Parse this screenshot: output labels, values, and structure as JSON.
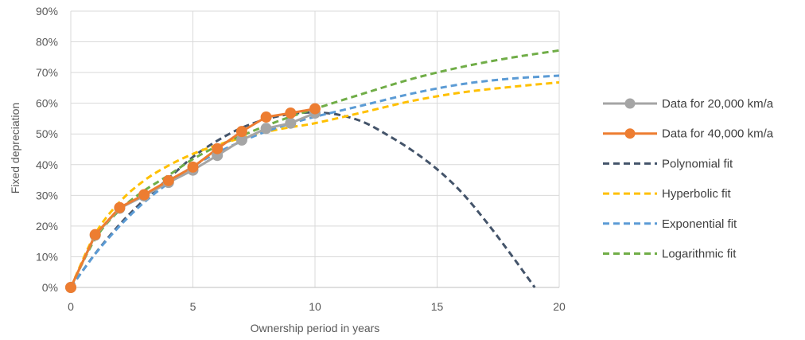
{
  "chart_data": {
    "type": "line",
    "xlabel": "Ownership period in years",
    "ylabel": "Fixed depreciation",
    "xlim": [
      0,
      20
    ],
    "ylim": [
      0,
      0.9
    ],
    "x_ticks": [
      0,
      5,
      10,
      15,
      20
    ],
    "y_ticks": [
      0,
      0.1,
      0.2,
      0.3,
      0.4,
      0.5,
      0.6,
      0.7,
      0.8,
      0.9
    ],
    "x_tick_labels": [
      "0",
      "5",
      "10",
      "15",
      "20"
    ],
    "y_tick_labels": [
      "0%",
      "10%",
      "20%",
      "30%",
      "40%",
      "50%",
      "60%",
      "70%",
      "80%",
      "90%"
    ],
    "grid": true,
    "legend_position": "right",
    "series": [
      {
        "name": "Data for 20,000 km/a",
        "kind": "data",
        "color": "#a5a5a5",
        "dashed": false,
        "markers": true,
        "x": [
          0,
          1,
          2,
          3,
          4,
          5,
          6,
          7,
          8,
          9,
          10
        ],
        "y": [
          0.0,
          0.17,
          0.258,
          0.298,
          0.342,
          0.382,
          0.43,
          0.48,
          0.518,
          0.535,
          0.568
        ]
      },
      {
        "name": "Data for 40,000 km/a",
        "kind": "data",
        "color": "#ed7d31",
        "dashed": false,
        "markers": true,
        "x": [
          0,
          1,
          2,
          3,
          4,
          5,
          6,
          7,
          8,
          9,
          10
        ],
        "y": [
          0.0,
          0.172,
          0.26,
          0.302,
          0.348,
          0.392,
          0.452,
          0.508,
          0.555,
          0.568,
          0.582
        ]
      },
      {
        "name": "Polynomial fit",
        "kind": "fit",
        "color": "#44546a",
        "dashed": true,
        "markers": false,
        "x": [
          0,
          1,
          2,
          3,
          4,
          5,
          6,
          7,
          8,
          9,
          10,
          11,
          12,
          13,
          14,
          15,
          16,
          17,
          18,
          19
        ],
        "y": [
          0.0,
          0.11,
          0.205,
          0.285,
          0.355,
          0.425,
          0.478,
          0.52,
          0.548,
          0.565,
          0.57,
          0.562,
          0.538,
          0.495,
          0.445,
          0.385,
          0.31,
          0.215,
          0.11,
          0.0
        ]
      },
      {
        "name": "Hyperbolic fit",
        "kind": "fit",
        "color": "#ffc000",
        "dashed": true,
        "markers": false,
        "x": [
          0,
          1,
          2,
          3,
          4,
          5,
          6,
          7,
          8,
          9,
          10,
          12,
          14,
          16,
          18,
          20
        ],
        "y": [
          0.0,
          0.174,
          0.278,
          0.348,
          0.397,
          0.435,
          0.464,
          0.487,
          0.507,
          0.522,
          0.535,
          0.571,
          0.608,
          0.635,
          0.653,
          0.668
        ]
      },
      {
        "name": "Exponential fit",
        "kind": "fit",
        "color": "#5b9bd5",
        "dashed": true,
        "markers": false,
        "x": [
          0,
          1,
          2,
          3,
          4,
          5,
          6,
          7,
          8,
          9,
          10,
          12,
          14,
          16,
          18,
          20
        ],
        "y": [
          0.0,
          0.109,
          0.2,
          0.277,
          0.34,
          0.394,
          0.439,
          0.476,
          0.508,
          0.534,
          0.556,
          0.594,
          0.632,
          0.662,
          0.68,
          0.69
        ]
      },
      {
        "name": "Logarithmic fit",
        "kind": "fit",
        "color": "#70ad47",
        "dashed": true,
        "markers": false,
        "x": [
          0,
          1,
          2,
          3,
          4,
          5,
          6,
          7,
          8,
          9,
          10,
          12,
          14,
          16,
          18,
          20
        ],
        "y": [
          0.0,
          0.158,
          0.252,
          0.315,
          0.365,
          0.418,
          0.46,
          0.494,
          0.527,
          0.556,
          0.582,
          0.632,
          0.68,
          0.718,
          0.748,
          0.772
        ]
      }
    ]
  }
}
